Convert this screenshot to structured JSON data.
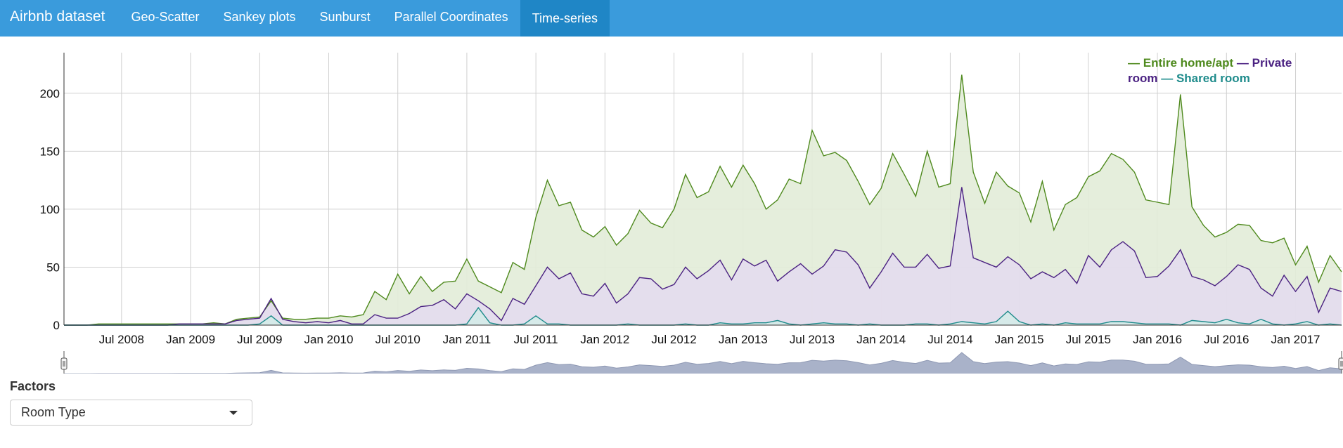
{
  "navbar": {
    "brand": "Airbnb dataset",
    "tabs": [
      {
        "label": "Geo-Scatter",
        "active": false
      },
      {
        "label": "Sankey plots",
        "active": false
      },
      {
        "label": "Sunburst",
        "active": false
      },
      {
        "label": "Parallel Coordinates",
        "active": false
      },
      {
        "label": "Time-series",
        "active": true
      }
    ]
  },
  "chart_data": {
    "type": "area",
    "title": "",
    "xlabel": "",
    "ylabel": "",
    "x_start": "2008-02",
    "x_interval": "month",
    "x_ticks": [
      "Jul 2008",
      "Jan 2009",
      "Jul 2009",
      "Jan 2010",
      "Jul 2010",
      "Jan 2011",
      "Jul 2011",
      "Jan 2012",
      "Jul 2012",
      "Jan 2013",
      "Jul 2013",
      "Jan 2014",
      "Jul 2014",
      "Jan 2015",
      "Jul 2015",
      "Jan 2016",
      "Jul 2016",
      "Jan 2017"
    ],
    "ylim": [
      0,
      235
    ],
    "y_ticks": [
      0,
      50,
      100,
      150,
      200
    ],
    "grid": true,
    "legend_position": "top-right",
    "series": [
      {
        "name": "Entire home/apt",
        "color": "#4f8a1e",
        "fill": "#e2ecd8",
        "values": [
          0,
          0,
          0,
          1,
          1,
          1,
          1,
          1,
          1,
          1,
          1,
          1,
          1,
          2,
          1,
          5,
          6,
          7,
          21,
          6,
          5,
          5,
          6,
          6,
          8,
          7,
          9,
          29,
          22,
          44,
          27,
          42,
          29,
          37,
          38,
          57,
          38,
          33,
          28,
          54,
          48,
          93,
          125,
          103,
          106,
          82,
          76,
          85,
          69,
          79,
          99,
          88,
          84,
          100,
          130,
          110,
          115,
          137,
          119,
          138,
          122,
          100,
          108,
          126,
          122,
          168,
          146,
          149,
          142,
          124,
          104,
          118,
          148,
          130,
          111,
          150,
          119,
          122,
          216,
          132,
          105,
          132,
          120,
          114,
          89,
          124,
          82,
          104,
          110,
          128,
          133,
          148,
          143,
          132,
          108,
          106,
          104,
          199,
          102,
          86,
          76,
          80,
          87,
          86,
          73,
          71,
          75,
          52,
          68,
          37,
          60,
          46
        ]
      },
      {
        "name": "Private room",
        "color": "#4b2282",
        "fill": "#e3dbee",
        "values": [
          0,
          0,
          0,
          0,
          0,
          0,
          0,
          0,
          0,
          0,
          1,
          1,
          1,
          1,
          1,
          4,
          5,
          6,
          23,
          5,
          3,
          2,
          3,
          2,
          4,
          1,
          1,
          9,
          6,
          6,
          10,
          16,
          17,
          22,
          14,
          27,
          21,
          14,
          4,
          23,
          18,
          34,
          50,
          40,
          45,
          27,
          25,
          36,
          19,
          27,
          41,
          40,
          31,
          35,
          50,
          40,
          47,
          56,
          39,
          57,
          51,
          56,
          38,
          46,
          53,
          44,
          51,
          65,
          63,
          52,
          32,
          46,
          62,
          50,
          50,
          61,
          49,
          51,
          119,
          58,
          54,
          50,
          59,
          52,
          40,
          46,
          41,
          48,
          36,
          60,
          50,
          65,
          72,
          64,
          41,
          42,
          51,
          65,
          42,
          39,
          34,
          42,
          52,
          48,
          32,
          25,
          43,
          29,
          42,
          11,
          32,
          29
        ]
      },
      {
        "name": "Shared room",
        "color": "#1f8c8c",
        "fill": "#d4ebe8",
        "values": [
          0,
          0,
          0,
          0,
          0,
          0,
          0,
          0,
          0,
          0,
          0,
          0,
          0,
          0,
          0,
          0,
          0,
          1,
          8,
          0,
          0,
          0,
          0,
          0,
          0,
          0,
          0,
          0,
          0,
          0,
          0,
          0,
          0,
          0,
          0,
          1,
          15,
          2,
          0,
          0,
          1,
          8,
          1,
          1,
          0,
          0,
          0,
          0,
          0,
          1,
          0,
          0,
          0,
          0,
          1,
          0,
          0,
          2,
          1,
          1,
          2,
          2,
          4,
          1,
          0,
          1,
          2,
          1,
          1,
          0,
          1,
          0,
          0,
          0,
          1,
          1,
          0,
          1,
          3,
          2,
          1,
          3,
          12,
          3,
          0,
          1,
          0,
          2,
          1,
          1,
          1,
          3,
          3,
          2,
          1,
          1,
          1,
          0,
          4,
          3,
          2,
          5,
          2,
          1,
          5,
          1,
          0,
          1,
          3,
          0,
          1,
          0
        ]
      }
    ]
  },
  "factors": {
    "label": "Factors",
    "selected": "Room Type"
  }
}
